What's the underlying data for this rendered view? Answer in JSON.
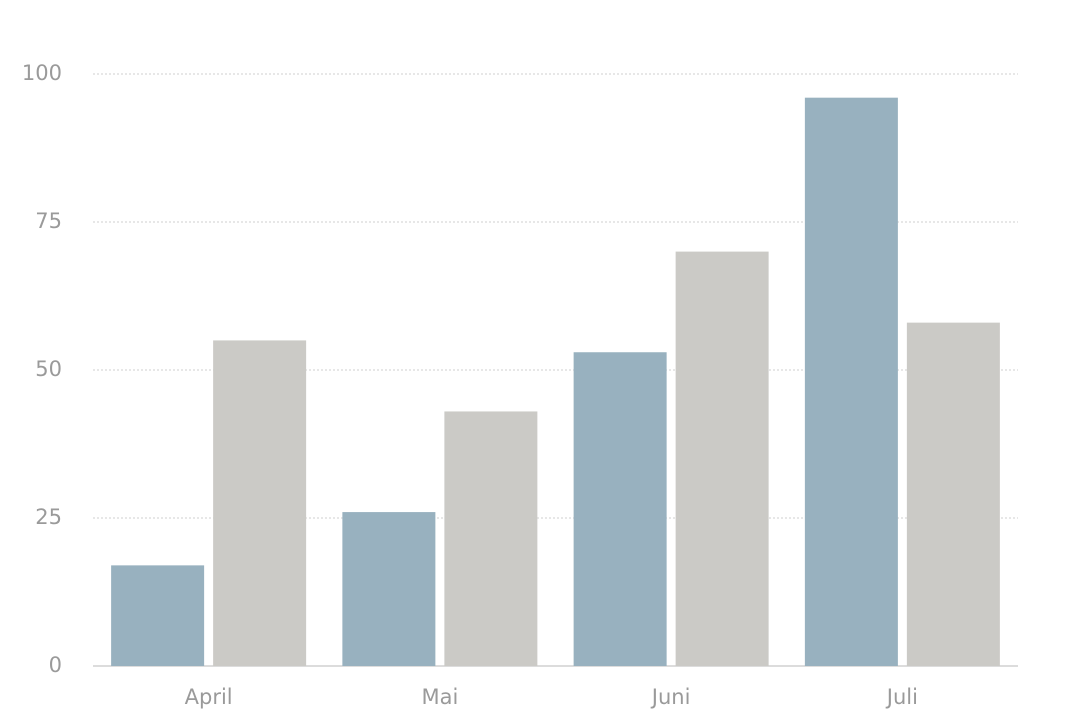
{
  "chart_data": {
    "type": "bar",
    "categories": [
      "April",
      "Mai",
      "Juni",
      "Juli"
    ],
    "series": [
      {
        "color": "#98b1bf",
        "values": [
          17,
          26,
          53,
          96
        ]
      },
      {
        "color": "#cbcac6",
        "values": [
          55,
          43,
          70,
          58
        ]
      }
    ],
    "ylim": [
      0,
      100
    ],
    "yticks": [
      0,
      25,
      50,
      75,
      100
    ],
    "grid": true
  }
}
